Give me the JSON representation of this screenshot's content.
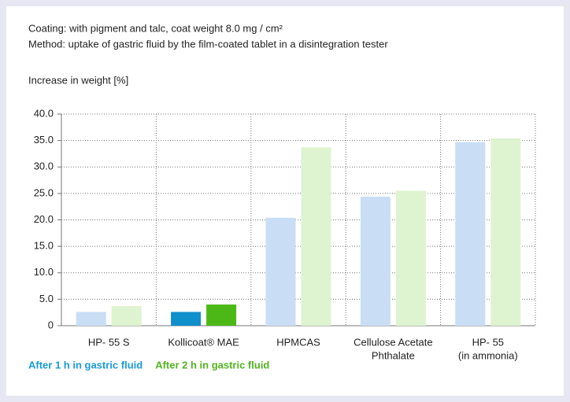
{
  "chart_data": {
    "type": "bar",
    "title": "Coating: with pigment and talc, coat weight 8.0 mg / cm²",
    "subtitle": "Method: uptake of gastric fluid by the film-coated tablet in a disintegration tester",
    "y_label": "Increase in weight [%]",
    "categories": [
      [
        "HP- 55 S"
      ],
      [
        "Kollicoat® MAE"
      ],
      [
        "HPMCAS"
      ],
      [
        "Cellulose Acetate",
        "Phthalate"
      ],
      [
        "HP- 55",
        "(in ammonia)"
      ]
    ],
    "series": [
      {
        "name": "After 1 h in gastric fluid",
        "color": "#1a9ad6",
        "bar_colors": [
          "#c9def5",
          "#0f8fcc",
          "#c9def5",
          "#c9def5",
          "#c9def5"
        ],
        "values": [
          2.6,
          2.6,
          20.4,
          24.4,
          34.7
        ]
      },
      {
        "name": "After 2 h in gastric fluid",
        "color": "#52b41e",
        "bar_colors": [
          "#def3cf",
          "#4cb817",
          "#def3cf",
          "#def3cf",
          "#def3cf"
        ],
        "values": [
          3.7,
          4.0,
          33.7,
          25.5,
          35.4
        ]
      }
    ],
    "ylim": [
      0,
      40
    ],
    "yticks": [
      0,
      {
        "value": 5,
        "label": "5.0"
      },
      {
        "value": 10,
        "label": "10.0"
      },
      {
        "value": 15,
        "label": "15.0"
      },
      {
        "value": 20,
        "label": "20.0"
      },
      {
        "value": 25,
        "label": "25.0"
      },
      {
        "value": 30,
        "label": "30.0"
      },
      {
        "value": 35,
        "label": "35.0"
      },
      {
        "value": 40,
        "label": "40.0"
      }
    ],
    "grid": true
  }
}
